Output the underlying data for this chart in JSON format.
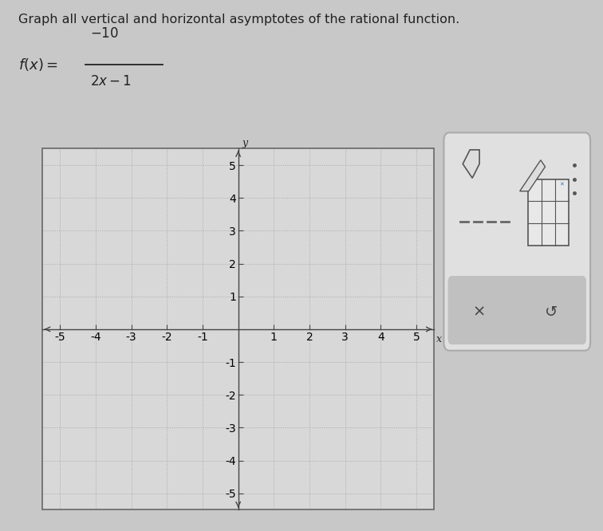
{
  "title": "Graph all vertical and horizontal asymptotes of the rational function.",
  "xlim": [
    -5.5,
    5.5
  ],
  "ylim": [
    -5.5,
    5.5
  ],
  "xticks": [
    -5,
    -4,
    -3,
    -2,
    -1,
    1,
    2,
    3,
    4,
    5
  ],
  "yticks": [
    -5,
    -4,
    -3,
    -2,
    -1,
    1,
    2,
    3,
    4,
    5
  ],
  "xlabel": "x",
  "ylabel": "y",
  "bg_color": "#d8d8d8",
  "grid_color": "#aaaaaa",
  "axis_color": "#444444",
  "border_color": "#666666",
  "figure_bg": "#c8c8c8",
  "text_color": "#222222",
  "panel_bg": "#e0e0e0",
  "panel_border": "#aaaaaa",
  "panel_bottom_bg": "#c0c0c0"
}
